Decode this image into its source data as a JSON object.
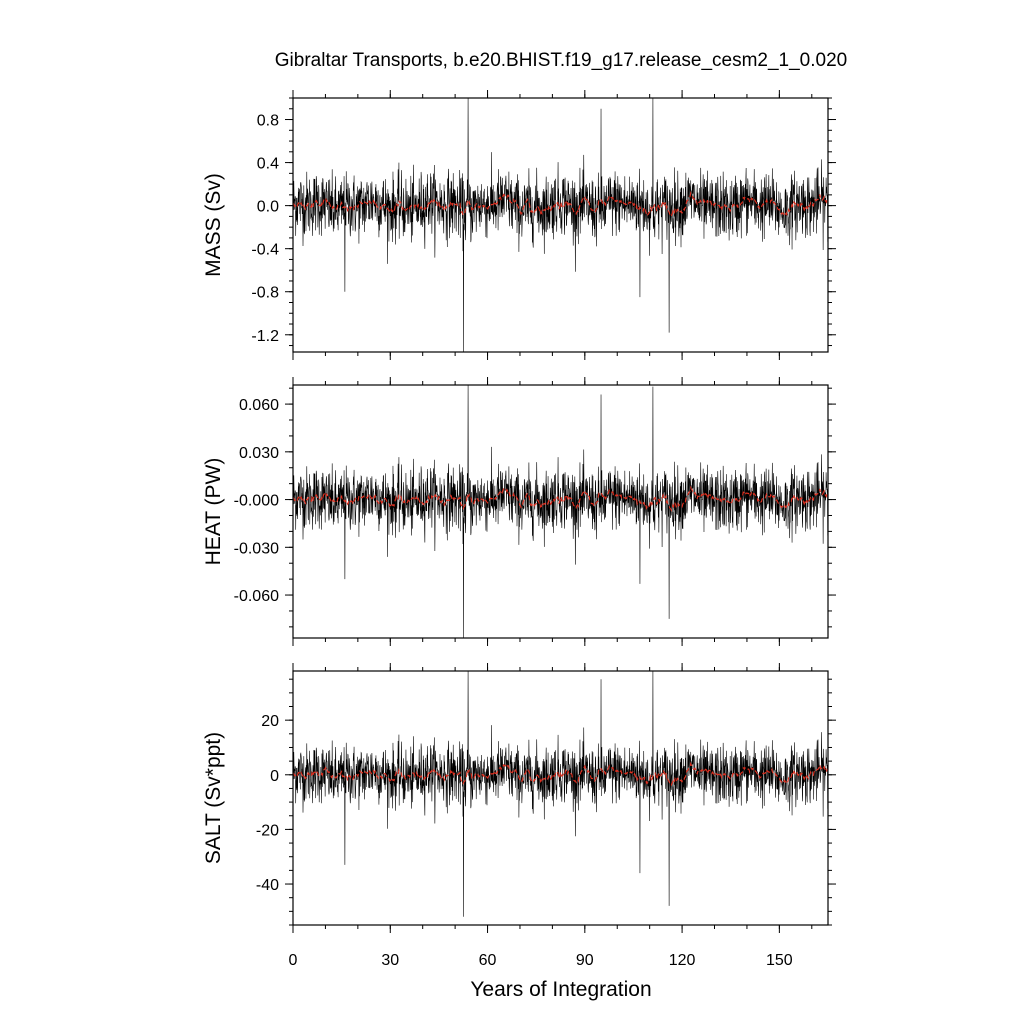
{
  "chart_data": {
    "type": "line",
    "title": "Gibraltar Transports, b.e20.BHIST.f19_g17.release_cesm2_1_0.020",
    "xlabel": "Years of Integration",
    "xlim": [
      0,
      165
    ],
    "xticks": [
      0,
      30,
      60,
      90,
      120,
      150
    ],
    "xtick_labels": [
      "0",
      "30",
      "60",
      "90",
      "120",
      "150"
    ],
    "grid": false,
    "panels": [
      {
        "name": "mass",
        "ylabel": "MASS (Sv)",
        "ylim": [
          -1.36,
          1.0
        ],
        "yticks": [
          0.8,
          0.4,
          0.0,
          -0.4,
          -0.8,
          -1.2
        ],
        "ytick_labels": [
          "0.8",
          "0.4",
          "0.0",
          "-0.4",
          "-0.8",
          "-1.2"
        ],
        "minor_step": 0.1,
        "noise_sd": 0.15,
        "mean_amp": 0.05,
        "spikes": [
          {
            "x": 52.6,
            "y": -1.36
          },
          {
            "x": 54.0,
            "y": 1.0
          },
          {
            "x": 111.0,
            "y": 1.0
          },
          {
            "x": 116.0,
            "y": -1.18
          },
          {
            "x": 107.0,
            "y": -0.85
          },
          {
            "x": 95.0,
            "y": 0.9
          },
          {
            "x": 16.0,
            "y": -0.8
          }
        ]
      },
      {
        "name": "heat",
        "ylabel": "HEAT (PW)",
        "ylim": [
          -0.087,
          0.072
        ],
        "yticks": [
          0.06,
          0.03,
          0.0,
          -0.03,
          -0.06
        ],
        "ytick_labels": [
          "0.060",
          "0.030",
          "-0.000",
          "-0.030",
          "-0.060"
        ],
        "minor_step": 0.01,
        "noise_sd": 0.01,
        "mean_amp": 0.003,
        "spikes": [
          {
            "x": 52.6,
            "y": -0.087
          },
          {
            "x": 54.0,
            "y": 0.072
          },
          {
            "x": 111.0,
            "y": 0.071
          },
          {
            "x": 116.0,
            "y": -0.075
          },
          {
            "x": 95.0,
            "y": 0.066
          },
          {
            "x": 107.0,
            "y": -0.053
          },
          {
            "x": 16.0,
            "y": -0.05
          }
        ]
      },
      {
        "name": "salt",
        "ylabel": "SALT (Sv*ppt)",
        "ylim": [
          -55,
          38
        ],
        "yticks": [
          20,
          0,
          -20,
          -40
        ],
        "ytick_labels": [
          "20",
          "0",
          "-20",
          "-40"
        ],
        "minor_step": 5,
        "noise_sd": 5.5,
        "mean_amp": 1.6,
        "spikes": [
          {
            "x": 52.6,
            "y": -52
          },
          {
            "x": 54.0,
            "y": 38
          },
          {
            "x": 111.0,
            "y": 38
          },
          {
            "x": 116.0,
            "y": -48
          },
          {
            "x": 95.0,
            "y": 35
          },
          {
            "x": 107.0,
            "y": -36
          },
          {
            "x": 16.0,
            "y": -33
          }
        ]
      }
    ],
    "series": [
      {
        "color": "#000000",
        "style": "monthly raw transport"
      },
      {
        "color": "#e03020",
        "style": "dashed running mean"
      }
    ]
  }
}
